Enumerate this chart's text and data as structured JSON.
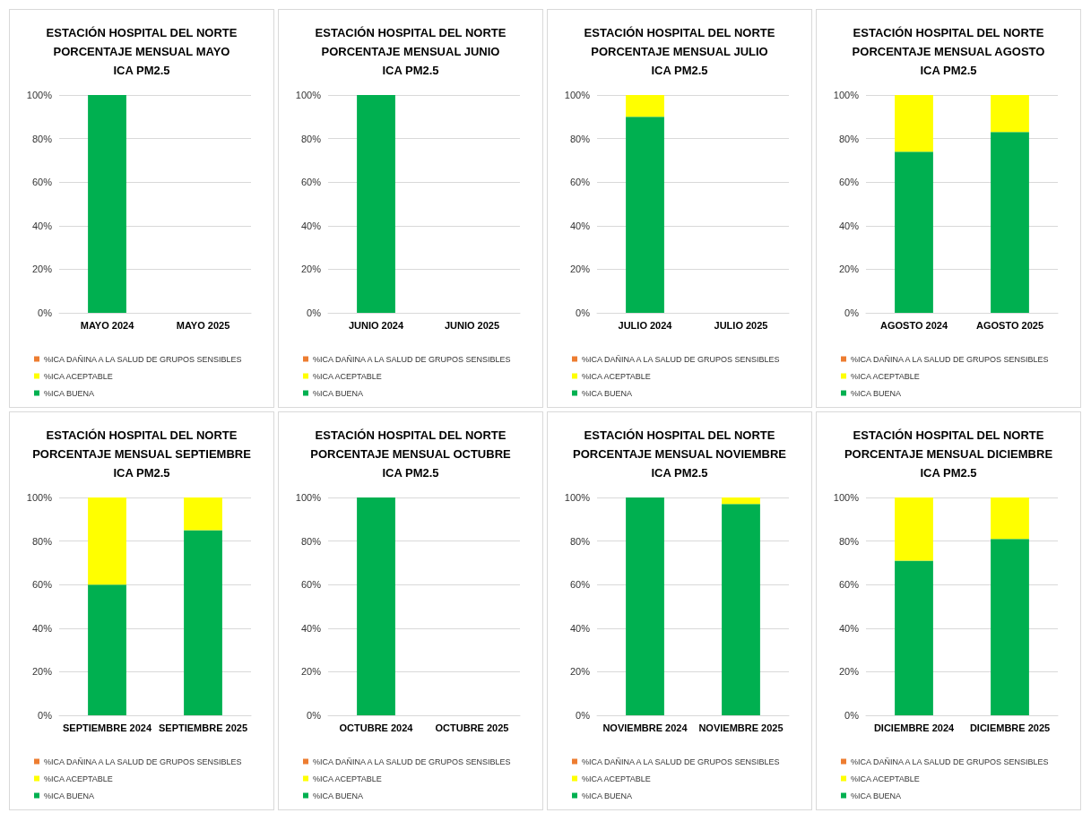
{
  "chart_data": [
    {
      "type": "bar",
      "title": "ESTACIÓN HOSPITAL DEL NORTE\nPORCENTAJE MENSUAL MAYO\nICA PM2.5",
      "categories": [
        "MAYO 2024",
        "MAYO 2025"
      ],
      "stacked": true,
      "grid": "y",
      "legend": "bottom",
      "series": [
        {
          "name": "%ICA BUENA",
          "color": "#00b050",
          "values": [
            100,
            null
          ]
        },
        {
          "name": "%ICA ACEPTABLE",
          "color": "#ffff00",
          "values": [
            0,
            null
          ]
        },
        {
          "name": "%ICA DAÑINA A LA SALUD DE GRUPOS SENSIBLES",
          "color": "#ed7d31",
          "values": [
            0,
            null
          ]
        }
      ],
      "ylim": [
        0,
        100
      ],
      "yticks": [
        {
          "value": 0,
          "label": "0%"
        },
        {
          "value": 20,
          "label": "20%"
        },
        {
          "value": 40,
          "label": "40%"
        },
        {
          "value": 60,
          "label": "60%"
        },
        {
          "value": 80,
          "label": "80%"
        },
        {
          "value": 100,
          "label": "100%"
        }
      ]
    },
    {
      "type": "bar",
      "title": "ESTACIÓN HOSPITAL DEL NORTE\nPORCENTAJE MENSUAL JUNIO\nICA PM2.5",
      "categories": [
        "JUNIO 2024",
        "JUNIO 2025"
      ],
      "stacked": true,
      "grid": "y",
      "legend": "bottom",
      "series": [
        {
          "name": "%ICA BUENA",
          "color": "#00b050",
          "values": [
            100,
            null
          ]
        },
        {
          "name": "%ICA ACEPTABLE",
          "color": "#ffff00",
          "values": [
            0,
            null
          ]
        },
        {
          "name": "%ICA DAÑINA A LA SALUD DE GRUPOS SENSIBLES",
          "color": "#ed7d31",
          "values": [
            0,
            null
          ]
        }
      ],
      "ylim": [
        0,
        100
      ],
      "yticks": [
        {
          "value": 0,
          "label": "0%"
        },
        {
          "value": 20,
          "label": "20%"
        },
        {
          "value": 40,
          "label": "40%"
        },
        {
          "value": 60,
          "label": "60%"
        },
        {
          "value": 80,
          "label": "80%"
        },
        {
          "value": 100,
          "label": "100%"
        }
      ]
    },
    {
      "type": "bar",
      "title": "ESTACIÓN HOSPITAL DEL NORTE\nPORCENTAJE MENSUAL JULIO\nICA PM2.5",
      "categories": [
        "JULIO 2024",
        "JULIO 2025"
      ],
      "stacked": true,
      "grid": "y",
      "legend": "bottom",
      "series": [
        {
          "name": "%ICA BUENA",
          "color": "#00b050",
          "values": [
            90,
            null
          ]
        },
        {
          "name": "%ICA ACEPTABLE",
          "color": "#ffff00",
          "values": [
            10,
            null
          ]
        },
        {
          "name": "%ICA DAÑINA A LA SALUD DE GRUPOS SENSIBLES",
          "color": "#ed7d31",
          "values": [
            0,
            null
          ]
        }
      ],
      "ylim": [
        0,
        100
      ],
      "yticks": [
        {
          "value": 0,
          "label": "0%"
        },
        {
          "value": 20,
          "label": "20%"
        },
        {
          "value": 40,
          "label": "40%"
        },
        {
          "value": 60,
          "label": "60%"
        },
        {
          "value": 80,
          "label": "80%"
        },
        {
          "value": 100,
          "label": "100%"
        }
      ]
    },
    {
      "type": "bar",
      "title": "ESTACIÓN HOSPITAL DEL NORTE\nPORCENTAJE MENSUAL AGOSTO\nICA PM2.5",
      "categories": [
        "AGOSTO 2024",
        "AGOSTO 2025"
      ],
      "stacked": true,
      "grid": "y",
      "legend": "bottom",
      "series": [
        {
          "name": "%ICA BUENA",
          "color": "#00b050",
          "values": [
            74,
            83
          ]
        },
        {
          "name": "%ICA ACEPTABLE",
          "color": "#ffff00",
          "values": [
            26,
            17
          ]
        },
        {
          "name": "%ICA DAÑINA A LA SALUD DE GRUPOS SENSIBLES",
          "color": "#ed7d31",
          "values": [
            0,
            0
          ]
        }
      ],
      "ylim": [
        0,
        100
      ],
      "yticks": [
        {
          "value": 0,
          "label": "0%"
        },
        {
          "value": 20,
          "label": "20%"
        },
        {
          "value": 40,
          "label": "40%"
        },
        {
          "value": 60,
          "label": "60%"
        },
        {
          "value": 80,
          "label": "80%"
        },
        {
          "value": 100,
          "label": "100%"
        }
      ]
    },
    {
      "type": "bar",
      "title": "ESTACIÓN HOSPITAL DEL NORTE\nPORCENTAJE MENSUAL SEPTIEMBRE\nICA PM2.5",
      "categories": [
        "SEPTIEMBRE 2024",
        "SEPTIEMBRE 2025"
      ],
      "stacked": true,
      "grid": "y",
      "legend": "bottom",
      "series": [
        {
          "name": "%ICA BUENA",
          "color": "#00b050",
          "values": [
            60,
            85
          ]
        },
        {
          "name": "%ICA ACEPTABLE",
          "color": "#ffff00",
          "values": [
            40,
            15
          ]
        },
        {
          "name": "%ICA DAÑINA A LA SALUD DE GRUPOS SENSIBLES",
          "color": "#ed7d31",
          "values": [
            0,
            0
          ]
        }
      ],
      "ylim": [
        0,
        100
      ],
      "yticks": [
        {
          "value": 0,
          "label": "0%"
        },
        {
          "value": 20,
          "label": "20%"
        },
        {
          "value": 40,
          "label": "40%"
        },
        {
          "value": 60,
          "label": "60%"
        },
        {
          "value": 80,
          "label": "80%"
        },
        {
          "value": 100,
          "label": "100%"
        }
      ]
    },
    {
      "type": "bar",
      "title": "ESTACIÓN HOSPITAL DEL NORTE\nPORCENTAJE MENSUAL OCTUBRE\nICA PM2.5",
      "categories": [
        "OCTUBRE 2024",
        "OCTUBRE 2025"
      ],
      "stacked": true,
      "grid": "y",
      "legend": "bottom",
      "series": [
        {
          "name": "%ICA BUENA",
          "color": "#00b050",
          "values": [
            100,
            null
          ]
        },
        {
          "name": "%ICA ACEPTABLE",
          "color": "#ffff00",
          "values": [
            0,
            null
          ]
        },
        {
          "name": "%ICA DAÑINA A LA SALUD DE GRUPOS SENSIBLES",
          "color": "#ed7d31",
          "values": [
            0,
            null
          ]
        }
      ],
      "ylim": [
        0,
        100
      ],
      "yticks": [
        {
          "value": 0,
          "label": "0%"
        },
        {
          "value": 20,
          "label": "20%"
        },
        {
          "value": 40,
          "label": "40%"
        },
        {
          "value": 60,
          "label": "60%"
        },
        {
          "value": 80,
          "label": "80%"
        },
        {
          "value": 100,
          "label": "100%"
        }
      ]
    },
    {
      "type": "bar",
      "title": "ESTACIÓN HOSPITAL DEL NORTE\nPORCENTAJE MENSUAL NOVIEMBRE\nICA PM2.5",
      "categories": [
        "NOVIEMBRE 2024",
        "NOVIEMBRE 2025"
      ],
      "stacked": true,
      "grid": "y",
      "legend": "bottom",
      "series": [
        {
          "name": "%ICA BUENA",
          "color": "#00b050",
          "values": [
            100,
            97
          ]
        },
        {
          "name": "%ICA ACEPTABLE",
          "color": "#ffff00",
          "values": [
            0,
            3
          ]
        },
        {
          "name": "%ICA DAÑINA A LA SALUD DE GRUPOS SENSIBLES",
          "color": "#ed7d31",
          "values": [
            0,
            0
          ]
        }
      ],
      "ylim": [
        0,
        100
      ],
      "yticks": [
        {
          "value": 0,
          "label": "0%"
        },
        {
          "value": 20,
          "label": "20%"
        },
        {
          "value": 40,
          "label": "40%"
        },
        {
          "value": 60,
          "label": "60%"
        },
        {
          "value": 80,
          "label": "80%"
        },
        {
          "value": 100,
          "label": "100%"
        }
      ]
    },
    {
      "type": "bar",
      "title": "ESTACIÓN HOSPITAL DEL NORTE\nPORCENTAJE MENSUAL DICIEMBRE\nICA PM2.5",
      "categories": [
        "DICIEMBRE 2024",
        "DICIEMBRE 2025"
      ],
      "stacked": true,
      "grid": "y",
      "legend": "bottom",
      "series": [
        {
          "name": "%ICA BUENA",
          "color": "#00b050",
          "values": [
            71,
            81
          ]
        },
        {
          "name": "%ICA ACEPTABLE",
          "color": "#ffff00",
          "values": [
            29,
            19
          ]
        },
        {
          "name": "%ICA DAÑINA A LA SALUD DE GRUPOS SENSIBLES",
          "color": "#ed7d31",
          "values": [
            0,
            0
          ]
        }
      ],
      "ylim": [
        0,
        100
      ],
      "yticks": [
        {
          "value": 0,
          "label": "0%"
        },
        {
          "value": 20,
          "label": "20%"
        },
        {
          "value": 40,
          "label": "40%"
        },
        {
          "value": 60,
          "label": "60%"
        },
        {
          "value": 80,
          "label": "80%"
        },
        {
          "value": 100,
          "label": "100%"
        }
      ]
    }
  ]
}
